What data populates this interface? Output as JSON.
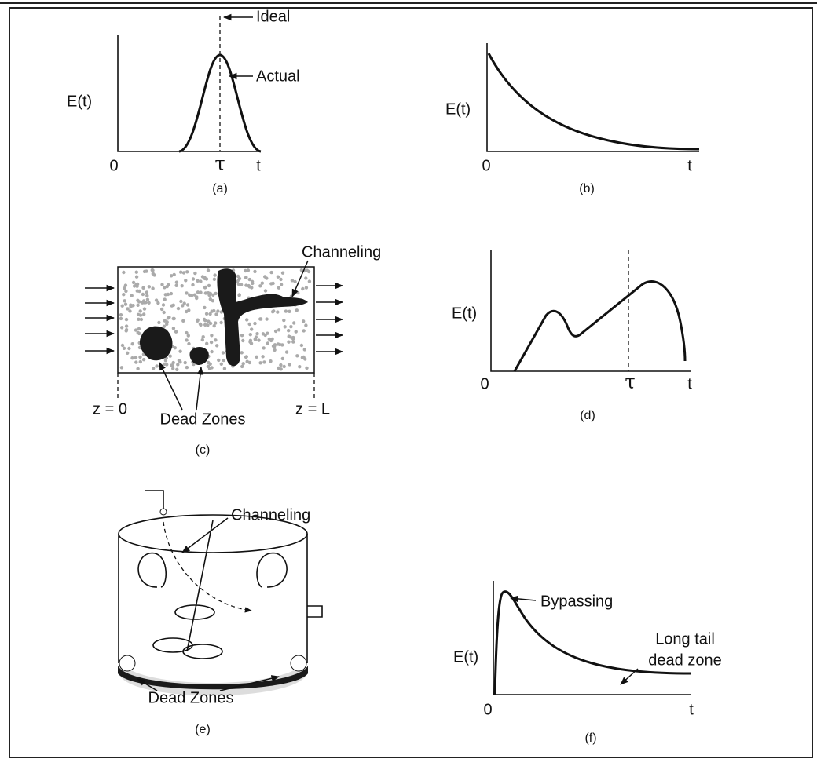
{
  "panels": [
    {
      "caption": "(a)",
      "y_label": "E(t)",
      "origin": "0",
      "tau": "τ",
      "x_label": "t",
      "annotations": [
        "Ideal",
        "Actual"
      ]
    },
    {
      "caption": "(b)",
      "y_label": "E(t)",
      "origin": "0",
      "x_label": "t"
    },
    {
      "caption": "(c)",
      "annotations": [
        "Channeling",
        "z = 0",
        "z = L",
        "Dead Zones"
      ]
    },
    {
      "caption": "(d)",
      "y_label": "E(t)",
      "origin": "0",
      "tau": "τ",
      "x_label": "t"
    },
    {
      "caption": "(e)",
      "annotations": [
        "Channeling",
        "Dead Zones"
      ]
    },
    {
      "caption": "(f)",
      "y_label": "E(t)",
      "origin": "0",
      "x_label": "t",
      "annotations": [
        "Bypassing",
        "Long tail",
        "dead zone"
      ]
    }
  ]
}
